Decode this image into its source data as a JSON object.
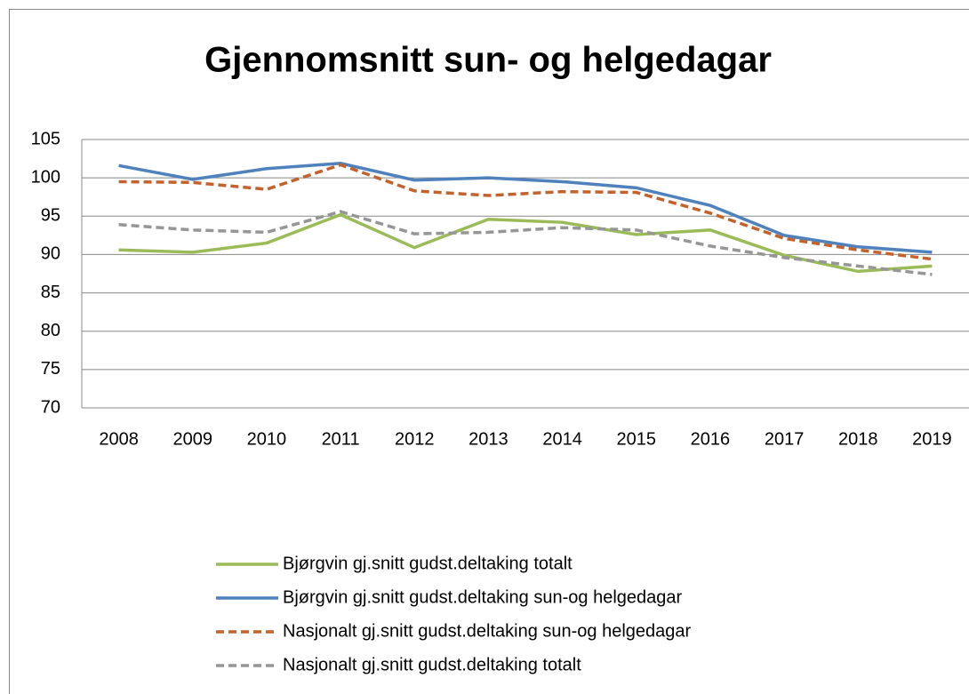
{
  "chart_data": {
    "type": "line",
    "title": "Gjennomsnitt sun- og helgedagar",
    "categories": [
      "2008",
      "2009",
      "2010",
      "2011",
      "2012",
      "2013",
      "2014",
      "2015",
      "2016",
      "2017",
      "2018",
      "2019"
    ],
    "series": [
      {
        "name": "Bjørgvin gj.snitt gudst.deltaking totalt",
        "color": "#9bbb59",
        "dash": false,
        "values": [
          90.6,
          90.3,
          91.5,
          95.2,
          90.9,
          94.6,
          94.2,
          92.6,
          93.2,
          89.9,
          87.8,
          88.5
        ]
      },
      {
        "name": "Bjørgvin gj.snitt gudst.deltaking sun-og helgedagar",
        "color": "#4f81bd",
        "dash": false,
        "values": [
          101.6,
          99.8,
          101.2,
          101.9,
          99.7,
          100.0,
          99.5,
          98.7,
          96.4,
          92.5,
          91.0,
          90.3
        ]
      },
      {
        "name": "Nasjonalt gj.snitt gudst.deltaking sun-og helgedagar",
        "color": "#c4622d",
        "dash": true,
        "values": [
          99.5,
          99.4,
          98.5,
          101.7,
          98.3,
          97.7,
          98.2,
          98.1,
          95.4,
          92.1,
          90.6,
          89.4
        ]
      },
      {
        "name": "Nasjonalt gj.snitt gudst.deltaking totalt",
        "color": "#969696",
        "dash": true,
        "values": [
          93.9,
          93.2,
          92.9,
          95.6,
          92.7,
          92.9,
          93.5,
          93.2,
          91.1,
          89.6,
          88.5,
          87.4
        ]
      }
    ],
    "ylim": [
      70,
      105
    ],
    "yticks": [
      70,
      75,
      80,
      85,
      90,
      95,
      100,
      105
    ],
    "grid": true,
    "legend": "bottom"
  }
}
